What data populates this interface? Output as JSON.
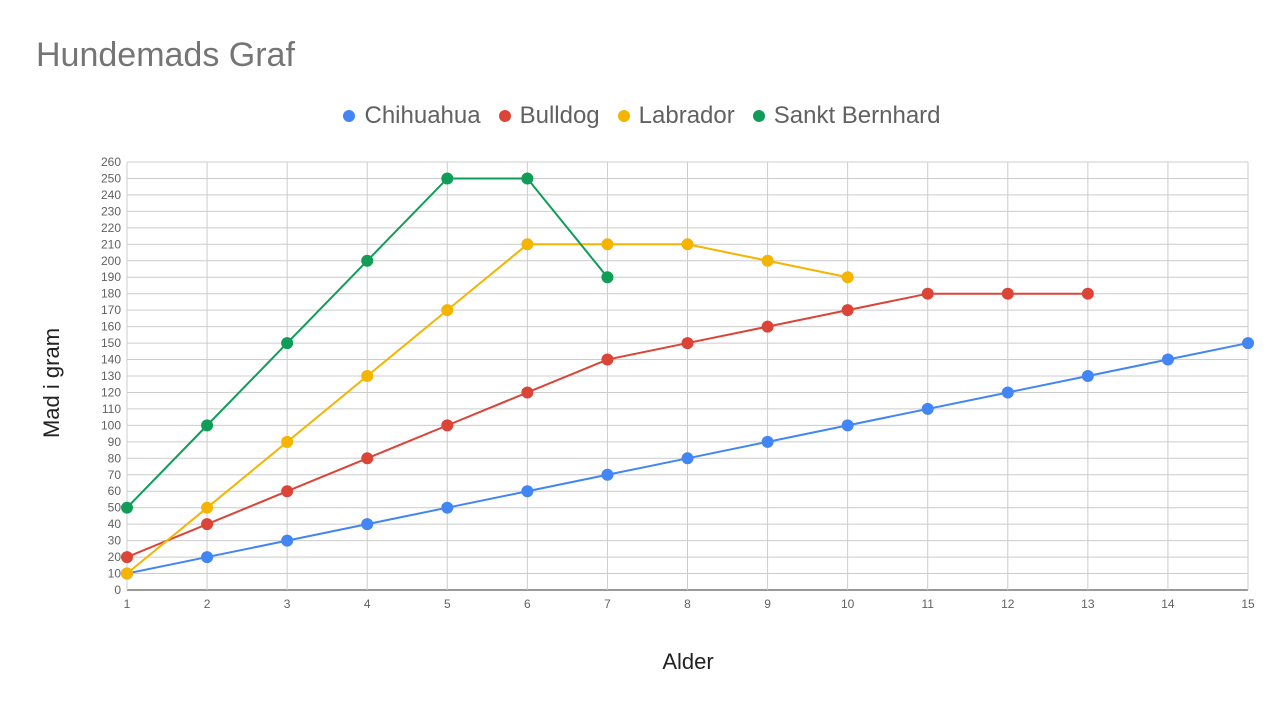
{
  "chart_data": {
    "type": "line",
    "title": "Hundemads Graf",
    "xlabel": "Alder",
    "ylabel": "Mad i gram",
    "xlim": [
      1,
      15
    ],
    "ylim": [
      0,
      260
    ],
    "x_ticks": [
      1,
      2,
      3,
      4,
      5,
      6,
      7,
      8,
      9,
      10,
      11,
      12,
      13,
      14,
      15
    ],
    "y_ticks": [
      0,
      10,
      20,
      30,
      40,
      50,
      60,
      70,
      80,
      90,
      100,
      110,
      120,
      130,
      140,
      150,
      160,
      170,
      180,
      190,
      200,
      210,
      220,
      230,
      240,
      250,
      260
    ],
    "grid": true,
    "legend_position": "top",
    "series": [
      {
        "name": "Chihuahua",
        "color": "#4285F4",
        "x": [
          1,
          2,
          3,
          4,
          5,
          6,
          7,
          8,
          9,
          10,
          11,
          12,
          13,
          14,
          15
        ],
        "y": [
          10,
          20,
          30,
          40,
          50,
          60,
          70,
          80,
          90,
          100,
          110,
          120,
          130,
          140,
          150
        ]
      },
      {
        "name": "Bulldog",
        "color": "#DB4437",
        "x": [
          1,
          2,
          3,
          4,
          5,
          6,
          7,
          8,
          9,
          10,
          11,
          12,
          13
        ],
        "y": [
          20,
          40,
          60,
          80,
          100,
          120,
          140,
          150,
          160,
          170,
          180,
          180,
          180
        ]
      },
      {
        "name": "Labrador",
        "color": "#F4B400",
        "x": [
          1,
          2,
          3,
          4,
          5,
          6,
          7,
          8,
          9,
          10
        ],
        "y": [
          10,
          50,
          90,
          130,
          170,
          210,
          210,
          210,
          200,
          190
        ]
      },
      {
        "name": "Sankt Bernhard",
        "color": "#0F9D58",
        "x": [
          1,
          2,
          3,
          4,
          5,
          6,
          7
        ],
        "y": [
          50,
          100,
          150,
          200,
          250,
          250,
          190
        ]
      }
    ]
  }
}
